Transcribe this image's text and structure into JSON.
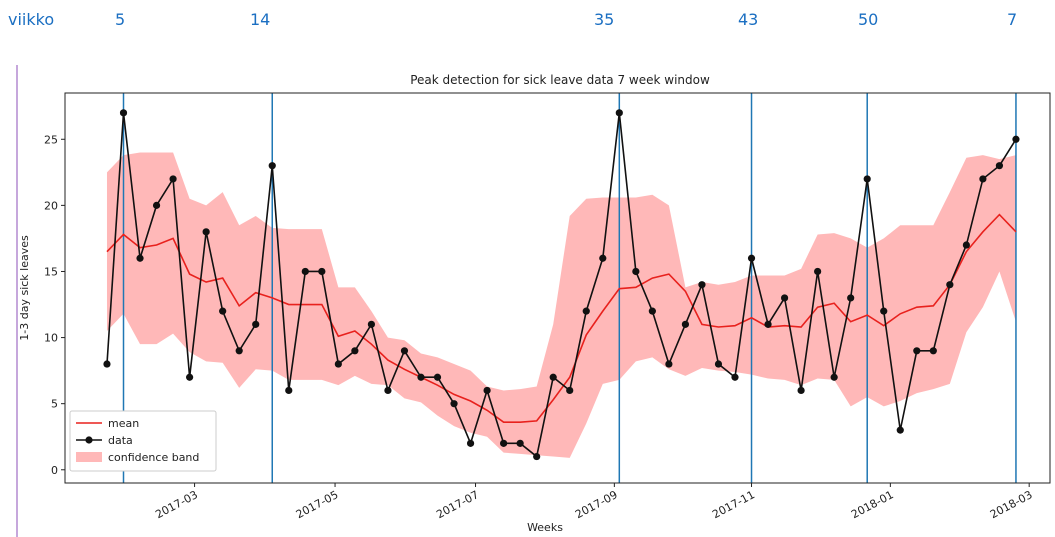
{
  "header": {
    "label": "viikko",
    "weeks": [
      5,
      14,
      35,
      43,
      50,
      7
    ]
  },
  "chart_data": {
    "type": "line",
    "title": "Peak detection for sick leave data 7 week window",
    "xlabel": "Weeks",
    "ylabel": "1-3 day sick leaves",
    "x": [
      4,
      5,
      6,
      7,
      8,
      9,
      10,
      11,
      12,
      13,
      14,
      15,
      16,
      17,
      18,
      19,
      20,
      21,
      22,
      23,
      24,
      25,
      26,
      27,
      28,
      29,
      30,
      31,
      32,
      33,
      34,
      35,
      36,
      37,
      38,
      39,
      40,
      41,
      42,
      43,
      44,
      45,
      46,
      47,
      48,
      49,
      50,
      51,
      52,
      53,
      54,
      55,
      56,
      57,
      58,
      59
    ],
    "xlim": [
      1.46,
      61.06
    ],
    "xticks": [
      {
        "value": 9.3,
        "label": "2017-03"
      },
      {
        "value": 17.8,
        "label": "2017-05"
      },
      {
        "value": 26.3,
        "label": "2017-07"
      },
      {
        "value": 34.7,
        "label": "2017-09"
      },
      {
        "value": 43.0,
        "label": "2017-11"
      },
      {
        "value": 51.4,
        "label": "2018-01"
      },
      {
        "value": 59.8,
        "label": "2018-03"
      }
    ],
    "ylim": [
      -1,
      28.5
    ],
    "yticks": [
      0,
      5,
      10,
      15,
      20,
      25
    ],
    "peaks": [
      5,
      14,
      35,
      43,
      50,
      59
    ],
    "peak_color": "#1f77b4",
    "legend": "lower left",
    "series": [
      {
        "name": "mean",
        "color": "#e8211d",
        "values": [
          16.5,
          17.8,
          16.8,
          17,
          17.5,
          14.8,
          14.2,
          14.5,
          12.4,
          13.4,
          13,
          12.5,
          12.5,
          12.5,
          10.1,
          10.5,
          9.5,
          8.3,
          7.6,
          7,
          6.4,
          5.7,
          5.2,
          4.5,
          3.6,
          3.6,
          3.7,
          5.3,
          7,
          10.2,
          12,
          13.7,
          13.8,
          14.5,
          14.8,
          13.5,
          11,
          10.8,
          10.9,
          11.5,
          10.8,
          10.9,
          10.8,
          12.3,
          12.6,
          11.2,
          11.7,
          10.9,
          11.8,
          12.3,
          12.4,
          14,
          16.5,
          18,
          19.3,
          18
        ]
      },
      {
        "name": "data",
        "color": "#111111",
        "values": [
          8,
          27,
          16,
          20,
          22,
          7,
          18,
          12,
          9,
          11,
          23,
          6,
          15,
          15,
          8,
          9,
          11,
          6,
          9,
          7,
          7,
          5,
          2,
          6,
          2,
          2,
          1,
          7,
          6,
          12,
          16,
          27,
          15,
          12,
          8,
          11,
          14,
          8,
          7,
          16,
          11,
          13,
          6,
          15,
          7,
          13,
          22,
          12,
          3,
          9,
          9,
          14,
          17,
          22,
          23,
          25
        ]
      },
      {
        "name": "confidence band",
        "color": "#ffb8b8",
        "upper": [
          22.5,
          23.8,
          24,
          24,
          24,
          20.5,
          20,
          21,
          18.5,
          19.2,
          18.3,
          18.2,
          18.2,
          18.2,
          13.8,
          13.8,
          12,
          10,
          9.8,
          8.8,
          8.5,
          8,
          7.5,
          6.3,
          6,
          6.1,
          6.3,
          11,
          19.2,
          20.5,
          20.6,
          20.6,
          20.6,
          20.8,
          20,
          13.8,
          14.2,
          14,
          14.2,
          14.7,
          14.7,
          14.7,
          15.2,
          17.8,
          17.9,
          17.5,
          16.8,
          17.5,
          18.5,
          18.5,
          18.5,
          21,
          23.6,
          23.8,
          23.5,
          23.8
        ],
        "lower": [
          10.5,
          11.8,
          9.5,
          9.5,
          10.3,
          8.9,
          8.2,
          8.1,
          6.2,
          7.6,
          7.5,
          6.8,
          6.8,
          6.8,
          6.4,
          7.1,
          6.5,
          6.4,
          5.4,
          5.1,
          4.1,
          3.3,
          2.8,
          2.5,
          1.3,
          1.2,
          1.1,
          1.0,
          0.9,
          3.5,
          6.5,
          6.8,
          8.2,
          8.5,
          7.6,
          7.1,
          7.7,
          7.5,
          7.4,
          7.2,
          6.9,
          6.8,
          6.4,
          6.9,
          6.8,
          4.8,
          5.5,
          4.8,
          5.2,
          5.8,
          6.1,
          6.5,
          10.4,
          12.3,
          15,
          11.2
        ]
      }
    ]
  }
}
